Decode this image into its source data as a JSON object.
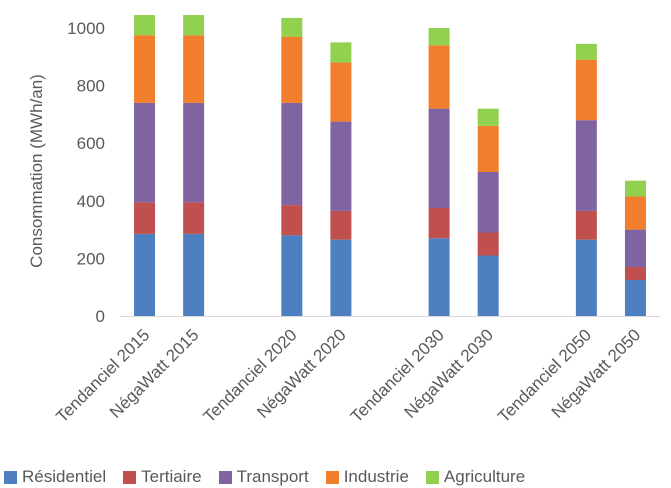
{
  "chart_data": {
    "type": "bar",
    "stacked": true,
    "title": "",
    "xlabel": "",
    "ylabel": "Consommation (MWh/an)",
    "ylim": [
      0,
      1000
    ],
    "yticks": [
      0,
      200,
      400,
      600,
      800,
      1000
    ],
    "grid": false,
    "legend_position": "bottom",
    "categories": [
      "Tendanciel 2015",
      "NégaWatt 2015",
      "",
      "Tendanciel 2020",
      "NégaWatt 2020",
      "",
      "Tendanciel 2030",
      "NégaWatt 2030",
      "",
      "Tendanciel 2050",
      "NégaWatt 2050"
    ],
    "series": [
      {
        "name": "Résidentiel",
        "color": "#4e7fc0",
        "values": [
          285,
          285,
          null,
          280,
          265,
          null,
          270,
          210,
          null,
          265,
          125
        ]
      },
      {
        "name": "Tertiaire",
        "color": "#c0504d",
        "values": [
          110,
          110,
          null,
          105,
          100,
          null,
          105,
          80,
          null,
          100,
          45
        ]
      },
      {
        "name": "Transport",
        "color": "#8064a2",
        "values": [
          345,
          345,
          null,
          355,
          310,
          null,
          345,
          210,
          null,
          315,
          130
        ]
      },
      {
        "name": "Industrie",
        "color": "#f07e2c",
        "values": [
          235,
          235,
          null,
          230,
          205,
          null,
          220,
          160,
          null,
          210,
          115
        ]
      },
      {
        "name": "Agriculture",
        "color": "#92d050",
        "values": [
          70,
          70,
          null,
          65,
          70,
          null,
          60,
          60,
          null,
          55,
          55
        ]
      }
    ]
  }
}
